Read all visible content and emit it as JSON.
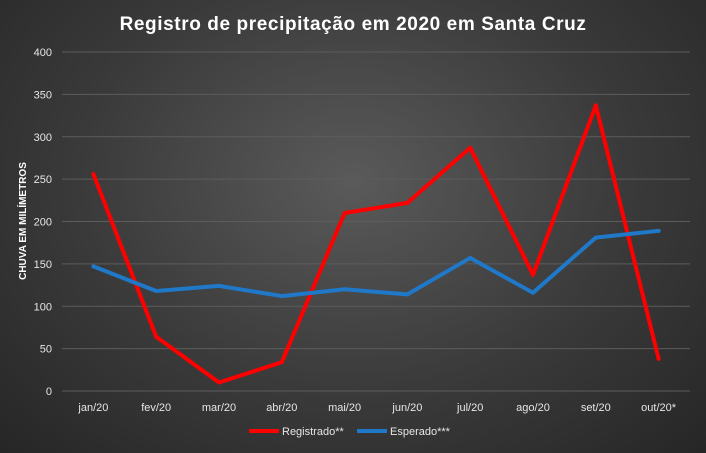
{
  "chart_data": {
    "type": "line",
    "title": "Registro de precipitação em 2020 em Santa Cruz",
    "xlabel": "",
    "ylabel": "CHUVA EM MILÍMETROS",
    "categories": [
      "jan/20",
      "fev/20",
      "mar/20",
      "abr/20",
      "mai/20",
      "jun/20",
      "jul/20",
      "ago/20",
      "set/20",
      "out/20*"
    ],
    "ylim": [
      0,
      400
    ],
    "yticks": [
      0,
      50,
      100,
      150,
      200,
      250,
      300,
      350,
      400
    ],
    "grid": true,
    "legend_position": "bottom",
    "series": [
      {
        "name": "Registrado**",
        "color": "#ff0000",
        "values": [
          256,
          64,
          10,
          34,
          210,
          222,
          287,
          137,
          337,
          38
        ]
      },
      {
        "name": "Esperado***",
        "color": "#1f78c8",
        "values": [
          147,
          118,
          124,
          112,
          120,
          114,
          157,
          116,
          181,
          189
        ]
      }
    ]
  }
}
